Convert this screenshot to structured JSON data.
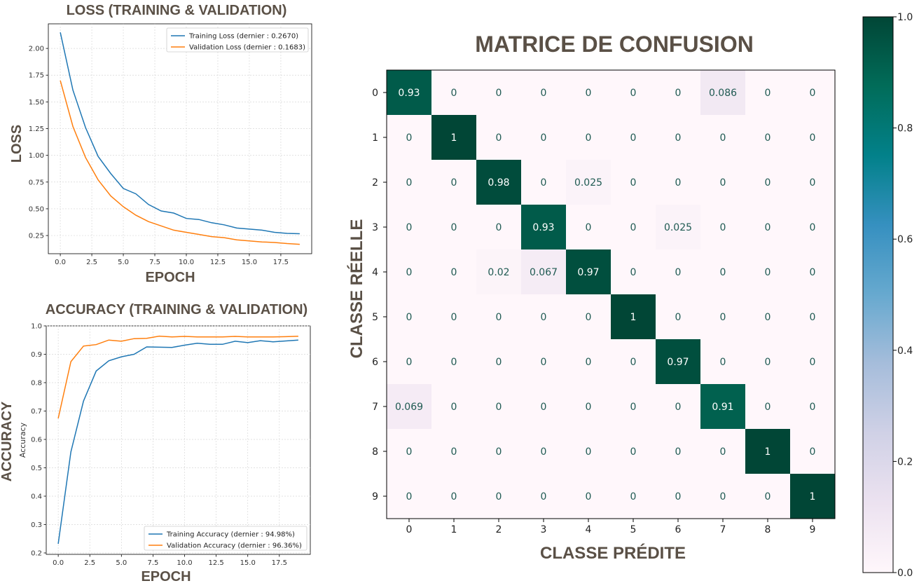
{
  "chart_data": [
    {
      "type": "line",
      "title": "LOSS (TRAINING & VALIDATION)",
      "xlabel": "EPOCH",
      "ylabel": "LOSS",
      "xlim": [
        -0.95,
        19.95
      ],
      "ylim": [
        0.08,
        2.23
      ],
      "xticks": [
        "0.0",
        "2.5",
        "5.0",
        "7.5",
        "10.0",
        "12.5",
        "15.0",
        "17.5"
      ],
      "yticks": [
        "0.25",
        "0.50",
        "0.75",
        "1.00",
        "1.25",
        "1.50",
        "1.75",
        "2.00"
      ],
      "grid": true,
      "legend_position": "top-right",
      "x": [
        0,
        1,
        2,
        3,
        4,
        5,
        6,
        7,
        8,
        9,
        10,
        11,
        12,
        13,
        14,
        15,
        16,
        17,
        18,
        19
      ],
      "series": [
        {
          "name": "Training Loss (dernier : 0.2670)",
          "color": "#1f77b4",
          "values": [
            2.15,
            1.61,
            1.26,
            0.99,
            0.83,
            0.69,
            0.64,
            0.54,
            0.48,
            0.46,
            0.41,
            0.4,
            0.37,
            0.35,
            0.32,
            0.31,
            0.3,
            0.28,
            0.27,
            0.267
          ]
        },
        {
          "name": "Validation Loss (dernier : 0.1683)",
          "color": "#ff7f0e",
          "values": [
            1.7,
            1.27,
            0.98,
            0.77,
            0.62,
            0.52,
            0.44,
            0.38,
            0.34,
            0.3,
            0.28,
            0.26,
            0.24,
            0.23,
            0.21,
            0.2,
            0.19,
            0.185,
            0.175,
            0.168
          ]
        }
      ]
    },
    {
      "type": "line",
      "title": "ACCURACY (TRAINING & VALIDATION)",
      "xlabel": "EPOCH",
      "ylabel": "ACCURACY",
      "ylabel_inner": "Accuracy",
      "xlim": [
        -0.95,
        19.95
      ],
      "ylim": [
        0.195,
        1.0
      ],
      "xticks": [
        "0.0",
        "2.5",
        "5.0",
        "7.5",
        "10.0",
        "12.5",
        "15.0",
        "17.5"
      ],
      "yticks": [
        "0.2",
        "0.3",
        "0.4",
        "0.5",
        "0.6",
        "0.7",
        "0.8",
        "0.9",
        "1.0"
      ],
      "grid": true,
      "legend_position": "bottom-right",
      "x": [
        0,
        1,
        2,
        3,
        4,
        5,
        6,
        7,
        8,
        9,
        10,
        11,
        12,
        13,
        14,
        15,
        16,
        17,
        18,
        19
      ],
      "series": [
        {
          "name": "Training Accuracy (dernier : 94.98%)",
          "color": "#1f77b4",
          "values": [
            0.232,
            0.556,
            0.735,
            0.841,
            0.877,
            0.891,
            0.9,
            0.926,
            0.925,
            0.924,
            0.932,
            0.939,
            0.935,
            0.935,
            0.946,
            0.941,
            0.948,
            0.944,
            0.947,
            0.95
          ]
        },
        {
          "name": "Validation Accuracy (dernier : 96.36%)",
          "color": "#ff7f0e",
          "values": [
            0.674,
            0.874,
            0.929,
            0.934,
            0.95,
            0.946,
            0.955,
            0.956,
            0.964,
            0.961,
            0.963,
            0.961,
            0.961,
            0.961,
            0.963,
            0.961,
            0.961,
            0.961,
            0.962,
            0.9636
          ]
        }
      ]
    },
    {
      "type": "heatmap",
      "title": "MATRICE DE CONFUSION",
      "xlabel": "CLASSE PRÉDITE",
      "ylabel": "CLASSE RÉELLE",
      "x_categories": [
        "0",
        "1",
        "2",
        "3",
        "4",
        "5",
        "6",
        "7",
        "8",
        "9"
      ],
      "y_categories": [
        "0",
        "1",
        "2",
        "3",
        "4",
        "5",
        "6",
        "7",
        "8",
        "9"
      ],
      "values": [
        [
          0.93,
          0,
          0,
          0,
          0,
          0,
          0,
          0.086,
          0,
          0
        ],
        [
          0,
          1,
          0,
          0,
          0,
          0,
          0,
          0,
          0,
          0
        ],
        [
          0,
          0,
          0.98,
          0,
          0.025,
          0,
          0,
          0,
          0,
          0
        ],
        [
          0,
          0,
          0,
          0.93,
          0,
          0,
          0.025,
          0,
          0,
          0
        ],
        [
          0,
          0,
          0.02,
          0.067,
          0.97,
          0,
          0,
          0,
          0,
          0
        ],
        [
          0,
          0,
          0,
          0,
          0,
          1,
          0,
          0,
          0,
          0
        ],
        [
          0,
          0,
          0,
          0,
          0,
          0,
          0.97,
          0,
          0,
          0
        ],
        [
          0.069,
          0,
          0,
          0,
          0,
          0,
          0,
          0.91,
          0,
          0
        ],
        [
          0,
          0,
          0,
          0,
          0,
          0,
          0,
          0,
          1,
          0
        ],
        [
          0,
          0,
          0,
          0,
          0,
          0,
          0,
          0,
          0,
          1
        ]
      ],
      "cell_labels": [
        [
          "0.93",
          "0",
          "0",
          "0",
          "0",
          "0",
          "0",
          "0.086",
          "0",
          "0"
        ],
        [
          "0",
          "1",
          "0",
          "0",
          "0",
          "0",
          "0",
          "0",
          "0",
          "0"
        ],
        [
          "0",
          "0",
          "0.98",
          "0",
          "0.025",
          "0",
          "0",
          "0",
          "0",
          "0"
        ],
        [
          "0",
          "0",
          "0",
          "0.93",
          "0",
          "0",
          "0.025",
          "0",
          "0",
          "0"
        ],
        [
          "0",
          "0",
          "0.02",
          "0.067",
          "0.97",
          "0",
          "0",
          "0",
          "0",
          "0"
        ],
        [
          "0",
          "0",
          "0",
          "0",
          "0",
          "1",
          "0",
          "0",
          "0",
          "0"
        ],
        [
          "0",
          "0",
          "0",
          "0",
          "0",
          "0",
          "0.97",
          "0",
          "0",
          "0"
        ],
        [
          "0.069",
          "0",
          "0",
          "0",
          "0",
          "0",
          "0",
          "0.91",
          "0",
          "0"
        ],
        [
          "0",
          "0",
          "0",
          "0",
          "0",
          "0",
          "0",
          "0",
          "1",
          "0"
        ],
        [
          "0",
          "0",
          "0",
          "0",
          "0",
          "0",
          "0",
          "0",
          "0",
          "1"
        ]
      ],
      "colorbar": {
        "range": [
          0,
          1
        ],
        "ticks": [
          "0.0",
          "0.2",
          "0.4",
          "0.6",
          "0.8",
          "1.0"
        ],
        "colormap": [
          "#fff7fb",
          "#ece2f0",
          "#d0d1e6",
          "#a6bddb",
          "#67a9cf",
          "#3690c0",
          "#02818a",
          "#016c59",
          "#014636"
        ]
      }
    }
  ]
}
